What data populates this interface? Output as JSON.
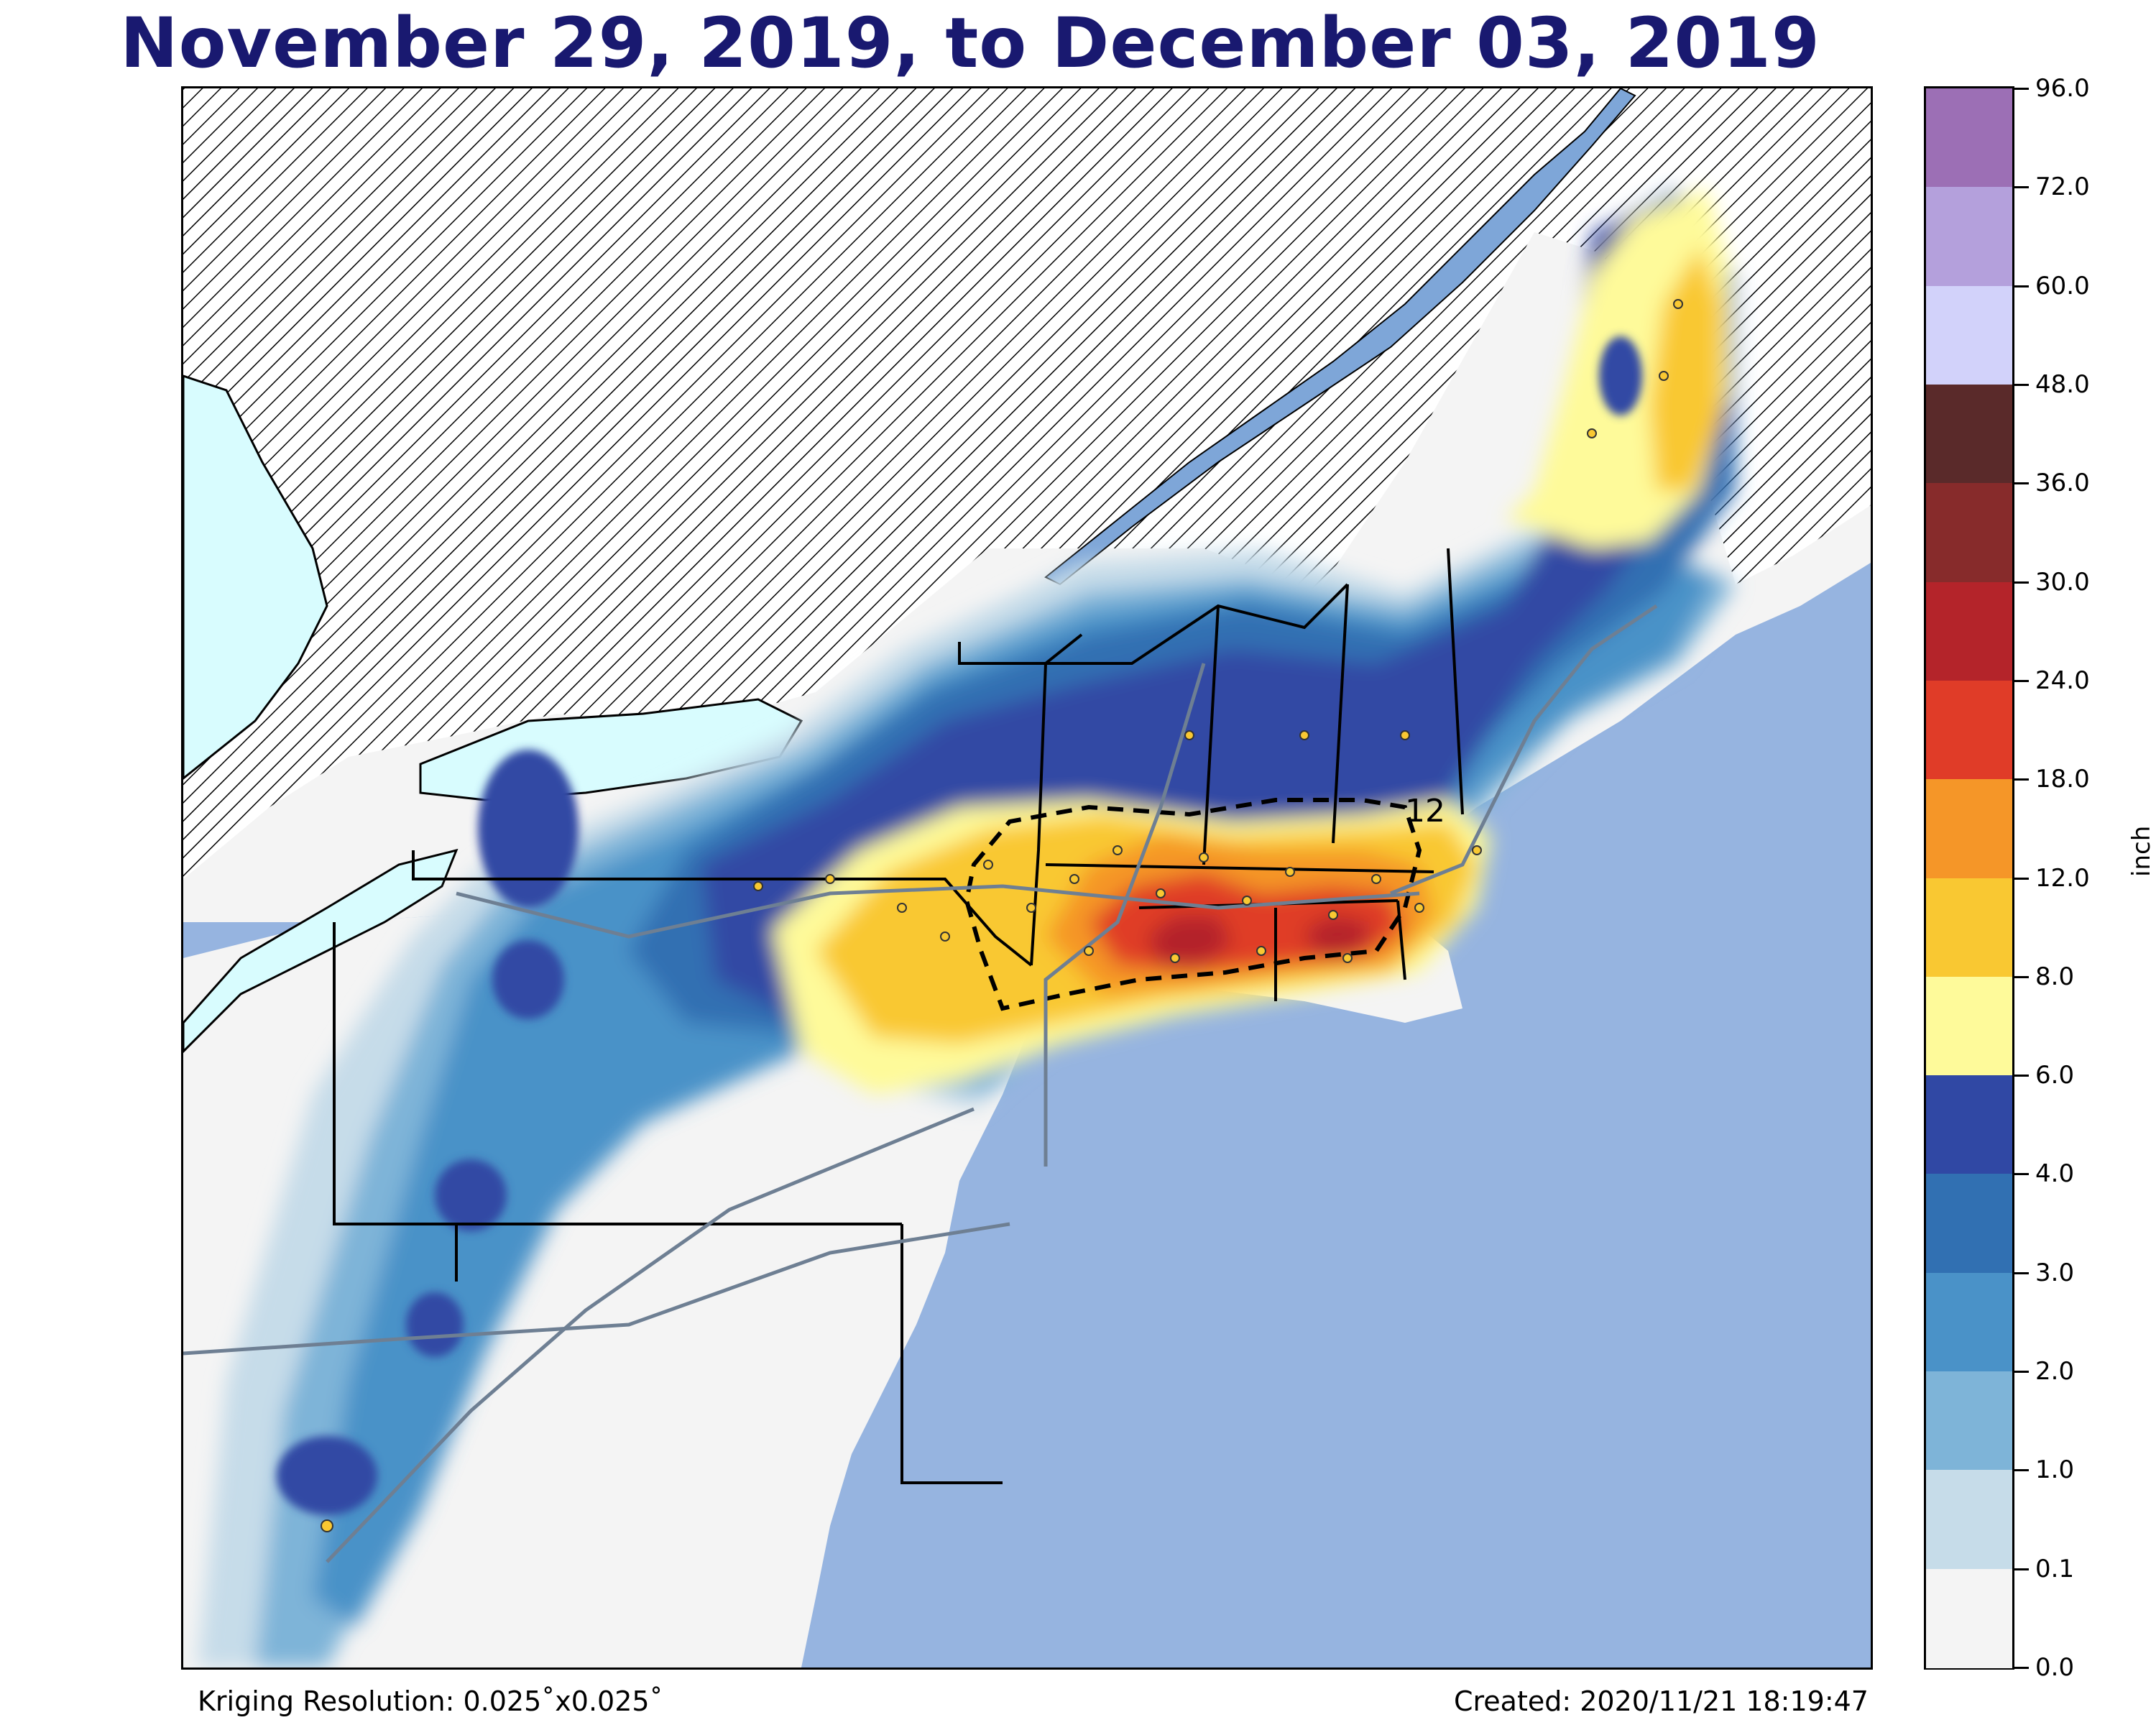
{
  "title": "November 29, 2019, to December 03, 2019",
  "footer": {
    "left": "Kriging Resolution: 0.025˚x0.025˚",
    "right": "Created: 2020/11/21 18:19:47"
  },
  "map": {
    "contour_label": "12",
    "colors": {
      "ocean": "#96b4e0",
      "lake": "#d8fcfe",
      "land": "#f4f4f4",
      "hatch_bg": "#ffffff"
    }
  },
  "colorbar": {
    "unit": "inch",
    "levels": [
      "96.0",
      "72.0",
      "60.0",
      "48.0",
      "36.0",
      "30.0",
      "24.0",
      "18.0",
      "12.0",
      "8.0",
      "6.0",
      "4.0",
      "3.0",
      "2.0",
      "1.0",
      "0.1",
      "0.0"
    ],
    "colors": [
      "#9c6fb5",
      "#b4a0dc",
      "#d2d2fa",
      "#5a2a2a",
      "#872b2b",
      "#b4242a",
      "#e03c28",
      "#f59628",
      "#f9c832",
      "#fefa9a",
      "#3048a4",
      "#3170b2",
      "#4a92c8",
      "#7eb4d8",
      "#c6dce9",
      "#f4f4f4"
    ]
  }
}
